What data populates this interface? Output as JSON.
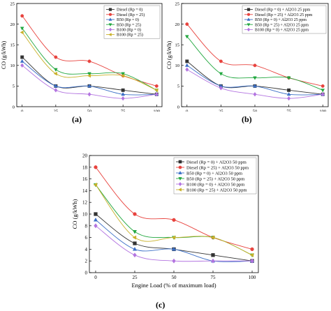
{
  "panel_labels": [
    "(a)",
    "(b)",
    "(c)"
  ],
  "chart_data": [
    {
      "type": "line",
      "xlabel": "Engine Load (% of maximum load)",
      "ylabel": "CO (g/kWh)",
      "x": [
        0,
        25,
        50,
        75,
        100
      ],
      "xlim": [
        -4,
        104
      ],
      "ylim": [
        0,
        25
      ],
      "xticks": [
        0,
        25,
        50,
        75,
        100
      ],
      "yticks": [
        0,
        5,
        10,
        15,
        20,
        25
      ],
      "grid": false,
      "legend_position": "top-right",
      "series": [
        {
          "name": "Diesel (Rp = 0)",
          "values": [
            12,
            5,
            5,
            4,
            3
          ],
          "color": "#333333",
          "marker": "square"
        },
        {
          "name": "Diesel (Rp = 25)",
          "values": [
            22,
            12,
            11,
            7.5,
            5
          ],
          "color": "#e8433e",
          "marker": "circle"
        },
        {
          "name": "B50 (Rp = 0)",
          "values": [
            11,
            5,
            5,
            3,
            3
          ],
          "color": "#3b6fc7",
          "marker": "triangle-up"
        },
        {
          "name": "B50 (Rp = 25)",
          "values": [
            19,
            9,
            8,
            8,
            4
          ],
          "color": "#23a840",
          "marker": "triangle-down"
        },
        {
          "name": "B100 (Rp = 0)",
          "values": [
            10,
            4,
            3,
            2,
            3
          ],
          "color": "#b374e0",
          "marker": "diamond"
        },
        {
          "name": "B100 (Rp = 25)",
          "values": [
            18,
            8,
            7.5,
            7.5,
            4
          ],
          "color": "#c9b12a",
          "marker": "triangle-left"
        }
      ]
    },
    {
      "type": "line",
      "xlabel": "Engine Load (% of maximum load)",
      "ylabel": "CO (g/kWh)",
      "x": [
        0,
        25,
        50,
        75,
        100
      ],
      "xlim": [
        -4,
        104
      ],
      "ylim": [
        0,
        25
      ],
      "xticks": [
        0,
        25,
        50,
        75,
        100
      ],
      "yticks": [
        0,
        5,
        10,
        15,
        20,
        25
      ],
      "grid": false,
      "legend_position": "top-right",
      "series": [
        {
          "name": "Diesel (Rp = 0) + Al2O3 25 ppm",
          "values": [
            11,
            5,
            5,
            4,
            3
          ],
          "color": "#333333",
          "marker": "square"
        },
        {
          "name": "Diesel (Rp = 25) + Al2O3 25 ppm",
          "values": [
            20,
            11,
            10,
            7,
            5
          ],
          "color": "#e8433e",
          "marker": "circle"
        },
        {
          "name": "B50 (Rp = 0) + Al2O3 25 ppm",
          "values": [
            10,
            5,
            5,
            3,
            3
          ],
          "color": "#3b6fc7",
          "marker": "triangle-up"
        },
        {
          "name": "B50 (Rp = 25) + Al2O3 25 ppm",
          "values": [
            17,
            8,
            7,
            7,
            4
          ],
          "color": "#23a840",
          "marker": "triangle-down"
        },
        {
          "name": "B100 (Rp = 0) + Al2O3 25 ppm",
          "values": [
            9,
            4.5,
            3,
            2,
            3
          ],
          "color": "#b374e0",
          "marker": "diamond"
        }
      ]
    },
    {
      "type": "line",
      "xlabel": "Engine Load (% of maximum load)",
      "ylabel": "CO (g/kWh)",
      "x": [
        0,
        25,
        50,
        75,
        100
      ],
      "xlim": [
        -4,
        104
      ],
      "ylim": [
        0,
        20
      ],
      "xticks": [
        0,
        25,
        50,
        75,
        100
      ],
      "yticks": [
        0,
        2,
        4,
        6,
        8,
        10,
        12,
        14,
        16,
        18,
        20
      ],
      "grid": false,
      "legend_position": "top-right",
      "series": [
        {
          "name": "Diesel (Rp = 0) + Al2O3 50 ppm",
          "values": [
            10,
            5,
            4,
            3,
            2
          ],
          "color": "#333333",
          "marker": "square"
        },
        {
          "name": "Diesel (Rp = 25) + Al2O3 50 ppm",
          "values": [
            18,
            10,
            9,
            6,
            4
          ],
          "color": "#e8433e",
          "marker": "circle"
        },
        {
          "name": "B50 (Rp = 0) + Al2O3 50 ppm",
          "values": [
            9,
            4,
            4,
            2,
            2
          ],
          "color": "#3b6fc7",
          "marker": "triangle-up"
        },
        {
          "name": "B50 (Rp = 25) + Al2O3 50 ppm",
          "values": [
            15,
            7,
            6,
            6,
            3
          ],
          "color": "#23a840",
          "marker": "triangle-down"
        },
        {
          "name": "B100 (Rp = 0) + Al2O3 50 ppm",
          "values": [
            8,
            3,
            2,
            2,
            2
          ],
          "color": "#b374e0",
          "marker": "diamond"
        },
        {
          "name": "B100 (Rp = 25) + Al2O3 50 ppm",
          "values": [
            15,
            6,
            6,
            6,
            3
          ],
          "color": "#c9b12a",
          "marker": "triangle-left"
        }
      ]
    }
  ]
}
